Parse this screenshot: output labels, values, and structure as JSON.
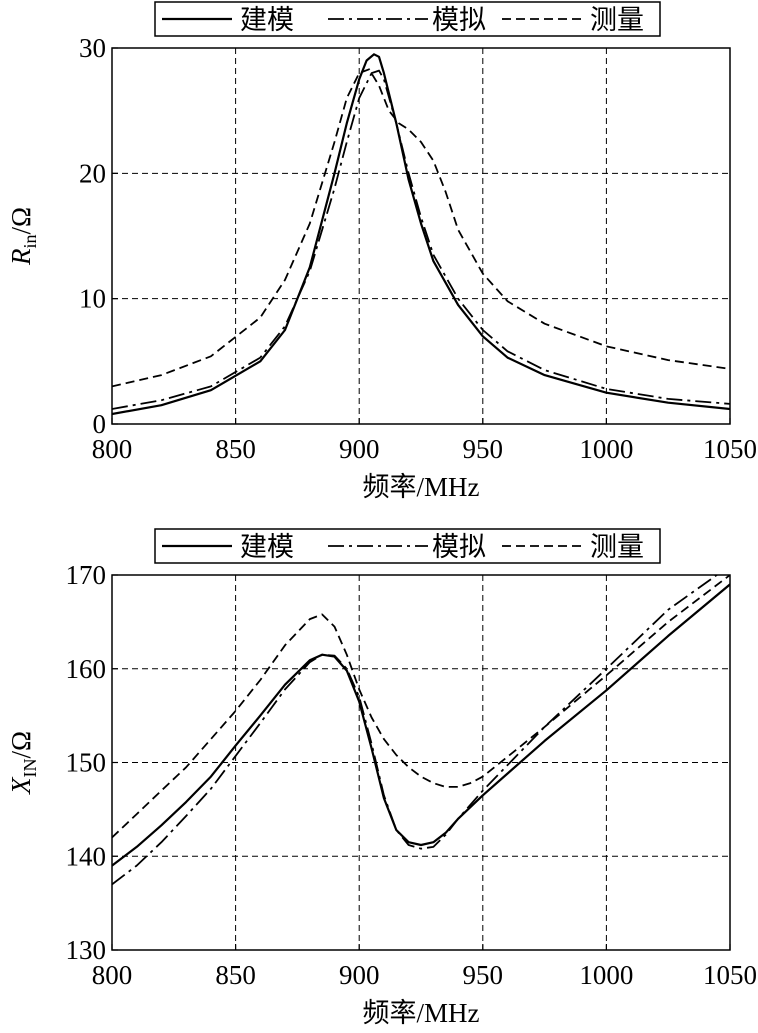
{
  "chart_data": [
    {
      "type": "line",
      "ylabel_main": "R",
      "ylabel_sub": "in",
      "ylabel_unit": "/Ω",
      "xlabel": "频率/MHz",
      "xlim": [
        800,
        1050
      ],
      "ylim": [
        0,
        30
      ],
      "xticks": [
        "800",
        "850",
        "900",
        "950",
        "1000",
        "1050"
      ],
      "yticks": [
        "0",
        "10",
        "20",
        "30"
      ],
      "grid": true,
      "legend_position": "top",
      "series": [
        {
          "name": "建模",
          "style": "solid",
          "x": [
            800,
            820,
            840,
            860,
            870,
            880,
            890,
            895,
            900,
            903,
            906,
            908,
            910,
            915,
            920,
            925,
            930,
            940,
            950,
            960,
            975,
            1000,
            1025,
            1050
          ],
          "y": [
            0.8,
            1.5,
            2.7,
            5.0,
            7.5,
            12.5,
            20.0,
            24.0,
            27.5,
            29.0,
            29.5,
            29.3,
            28.0,
            24.0,
            19.5,
            16.0,
            13.0,
            9.5,
            7.0,
            5.3,
            3.9,
            2.5,
            1.7,
            1.2
          ]
        },
        {
          "name": "模拟",
          "style": "dashdot",
          "x": [
            800,
            820,
            840,
            860,
            870,
            880,
            890,
            895,
            900,
            905,
            908,
            910,
            915,
            920,
            925,
            930,
            940,
            950,
            960,
            975,
            1000,
            1025,
            1050
          ],
          "y": [
            1.2,
            1.9,
            3.0,
            5.3,
            7.8,
            12.2,
            18.8,
            22.5,
            26.0,
            28.0,
            28.2,
            27.5,
            24.0,
            20.0,
            16.5,
            13.5,
            10.0,
            7.5,
            5.8,
            4.3,
            2.8,
            2.0,
            1.6
          ]
        },
        {
          "name": "测量",
          "style": "dashed",
          "x": [
            800,
            820,
            840,
            860,
            870,
            880,
            890,
            895,
            900,
            904,
            908,
            912,
            916,
            920,
            925,
            930,
            935,
            940,
            950,
            960,
            975,
            1000,
            1025,
            1050
          ],
          "y": [
            3.0,
            3.9,
            5.4,
            8.5,
            11.5,
            16.0,
            22.5,
            26.0,
            28.0,
            28.3,
            27.0,
            25.0,
            24.0,
            23.5,
            22.5,
            21.0,
            18.5,
            15.5,
            12.0,
            9.8,
            8.0,
            6.2,
            5.1,
            4.4
          ]
        }
      ]
    },
    {
      "type": "line",
      "ylabel_main": "X",
      "ylabel_sub": "IN",
      "ylabel_unit": "/Ω",
      "xlabel": "频率/MHz",
      "xlim": [
        800,
        1050
      ],
      "ylim": [
        130,
        170
      ],
      "xticks": [
        "800",
        "850",
        "900",
        "950",
        "1000",
        "1050"
      ],
      "yticks": [
        "130",
        "140",
        "150",
        "160",
        "170"
      ],
      "grid": true,
      "legend_position": "top",
      "series": [
        {
          "name": "建模",
          "style": "solid",
          "x": [
            800,
            810,
            820,
            830,
            840,
            850,
            860,
            870,
            880,
            885,
            890,
            895,
            900,
            905,
            910,
            915,
            920,
            925,
            930,
            935,
            940,
            950,
            975,
            1000,
            1025,
            1050
          ],
          "y": [
            139,
            141,
            143.3,
            145.8,
            148.5,
            151.8,
            155,
            158.3,
            160.9,
            161.5,
            161.3,
            159.8,
            156.5,
            151.5,
            146.2,
            142.8,
            141.5,
            141.2,
            141.5,
            142.5,
            144,
            146.5,
            152.3,
            157.7,
            163.5,
            169
          ]
        },
        {
          "name": "模拟",
          "style": "dashdot",
          "x": [
            800,
            810,
            820,
            830,
            840,
            850,
            860,
            870,
            880,
            885,
            890,
            895,
            900,
            905,
            910,
            915,
            920,
            925,
            930,
            935,
            940,
            950,
            975,
            1000,
            1025,
            1050
          ],
          "y": [
            137,
            139,
            141.5,
            144.3,
            147.2,
            150.7,
            154.2,
            157.8,
            160.7,
            161.5,
            161.4,
            160,
            157,
            152,
            146.5,
            142.8,
            141.2,
            140.8,
            141,
            142.3,
            144,
            147,
            153.8,
            160,
            166.3,
            171
          ]
        },
        {
          "name": "测量",
          "style": "dashed",
          "x": [
            800,
            810,
            820,
            830,
            840,
            850,
            860,
            870,
            880,
            885,
            890,
            895,
            900,
            905,
            910,
            915,
            920,
            925,
            930,
            935,
            940,
            945,
            950,
            975,
            1000,
            1025,
            1050
          ],
          "y": [
            142,
            144.5,
            147,
            149.5,
            152.5,
            155.5,
            158.8,
            162.5,
            165.3,
            165.8,
            164.5,
            161.5,
            157.8,
            154.8,
            152.5,
            150.8,
            149.5,
            148.5,
            147.8,
            147.4,
            147.4,
            147.8,
            148.5,
            153.8,
            159.3,
            165,
            170
          ]
        }
      ]
    }
  ]
}
